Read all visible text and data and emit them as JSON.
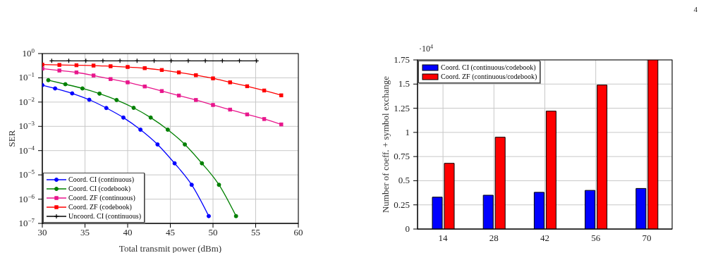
{
  "chart_data": [
    {
      "type": "line",
      "xlabel": "Total transmit power (dBm)",
      "ylabel": "SER",
      "log": "y",
      "grid": true,
      "legend": "bottom left",
      "line_style": "solid",
      "xlim": [
        30,
        60
      ],
      "xticks": [
        30,
        35,
        40,
        45,
        50,
        55,
        60
      ],
      "ylim": [
        1e-07,
        1
      ],
      "yticks": [
        {
          "value": 1e-07,
          "label": "10$^{−7}$"
        },
        {
          "value": 1e-06,
          "label": "10$^{−6}$"
        },
        {
          "value": 1e-05,
          "label": "10$^{−5}$"
        },
        {
          "value": 0.0001,
          "label": "10$^{−4}$"
        },
        {
          "value": 0.001,
          "label": "10$^{−3}$"
        },
        {
          "value": 0.01,
          "label": "10$^{−2}$"
        },
        {
          "value": 0.1,
          "label": "10$^{−1}$"
        },
        {
          "value": 1,
          "label": "10$^{0}$"
        }
      ],
      "series": [
        {
          "name": "Coord. CI (continuous)",
          "color": "#0000ff",
          "marker": "circle",
          "x": [
            30,
            31.5,
            33.5,
            35.5,
            37.5,
            39.5,
            41.5,
            43.5,
            45.5,
            47.5,
            49.5
          ],
          "values": [
            0.05,
            0.0365,
            0.0228,
            0.0125,
            0.0057,
            0.0023,
            0.00073,
            0.00018,
            3e-05,
            3.9e-06,
            2e-07
          ]
        },
        {
          "name": "Coord. CI (codebook)",
          "color": "#008000",
          "marker": "circle",
          "x": [
            30.7,
            32.7,
            34.7,
            36.7,
            38.7,
            40.7,
            42.7,
            44.7,
            46.7,
            48.7,
            50.7,
            52.7
          ],
          "values": [
            0.08,
            0.0545,
            0.0365,
            0.0223,
            0.0122,
            0.0058,
            0.0023,
            0.00073,
            0.00018,
            3e-05,
            3.9e-06,
            2e-07
          ]
        },
        {
          "name": "Coord. ZF (continuous)",
          "color": "#e8168c",
          "marker": "square",
          "x": [
            30,
            32,
            34,
            36,
            38,
            40,
            42,
            44,
            46,
            48,
            50,
            52,
            54,
            56,
            58
          ],
          "values": [
            0.24,
            0.2,
            0.167,
            0.125,
            0.089,
            0.065,
            0.044,
            0.0285,
            0.0186,
            0.0122,
            0.0076,
            0.0049,
            0.0031,
            0.002,
            0.0012
          ]
        },
        {
          "name": "Coord. ZF (codebook)",
          "color": "#ff0000",
          "marker": "square",
          "x": [
            30,
            32,
            34,
            36,
            38,
            40,
            42,
            44,
            46,
            48,
            50,
            52,
            54,
            56,
            58
          ],
          "values": [
            0.35,
            0.34,
            0.33,
            0.32,
            0.3,
            0.28,
            0.25,
            0.21,
            0.167,
            0.128,
            0.095,
            0.065,
            0.045,
            0.03,
            0.019
          ]
        },
        {
          "name": "Uncoord. CI (continuous)",
          "color": "#000000",
          "marker": "cross",
          "x": [
            31.1,
            33.1,
            35.1,
            37.1,
            39.1,
            41.1,
            43.1,
            45.1,
            47.1,
            49.1,
            51.1,
            53.1,
            55.1
          ],
          "values": [
            0.5,
            0.5,
            0.5,
            0.5,
            0.5,
            0.5,
            0.5,
            0.5,
            0.5,
            0.5,
            0.5,
            0.5,
            0.5
          ]
        }
      ]
    },
    {
      "type": "bar",
      "ylabel": "Number of coeff. + symbol exchange",
      "grid": true,
      "legend": "top left",
      "categories": [
        "14",
        "28",
        "42",
        "56",
        "70"
      ],
      "ylim": [
        0,
        1.75
      ],
      "yticks": [
        0,
        0.25,
        0.5,
        0.75,
        1,
        1.25,
        1.5,
        1.75
      ],
      "annotations": [
        "·10$^{4}$",
        "4"
      ],
      "series": [
        {
          "name": "Coord. CI (continuous/codebook)",
          "color": "#0000ff",
          "values": [
            0.33,
            0.35,
            0.38,
            0.4,
            0.42
          ]
        },
        {
          "name": "Coord. ZF (continuous/codebook)",
          "color": "#ff0000",
          "values": [
            0.68,
            0.95,
            1.22,
            1.49,
            1.75
          ]
        }
      ]
    }
  ]
}
